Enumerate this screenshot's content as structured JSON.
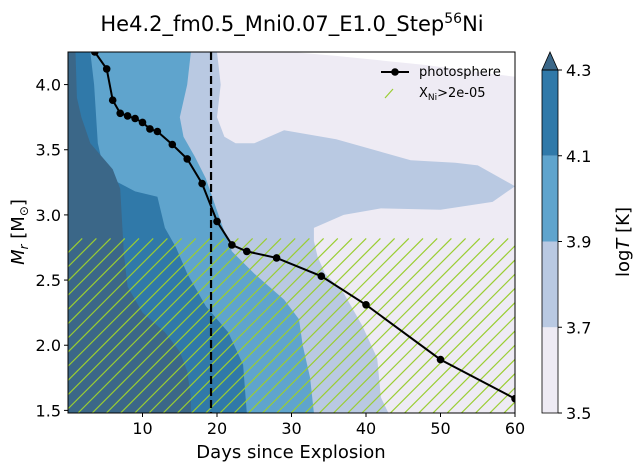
{
  "chart_data": {
    "type": "line",
    "title": "He4.2_fm0.5_Mni0.07_E1.0_Step",
    "title_superscript": "56",
    "title_suffix": "Ni",
    "xlabel": "Days since Explosion",
    "ylabel_main": "M",
    "ylabel_sub": "r",
    "ylabel_unit_open": " [M",
    "ylabel_unit_sub": "⊙",
    "ylabel_unit_close": "]",
    "xlim": [
      0,
      60
    ],
    "ylim": [
      1.48,
      4.25
    ],
    "xticks": [
      10,
      20,
      30,
      40,
      50,
      60
    ],
    "yticks": [
      1.5,
      2.0,
      2.5,
      3.0,
      3.5,
      4.0
    ],
    "vline_x": 19.2,
    "series": [
      {
        "name": "photosphere",
        "x": [
          3.6,
          5.2,
          6.0,
          7.0,
          8.0,
          9.0,
          10.0,
          11.0,
          12.0,
          14.0,
          16.0,
          18.0,
          20.0,
          22.0,
          24.0,
          28.0,
          34.0,
          40.0,
          50.0,
          60.0
        ],
        "y": [
          4.25,
          4.12,
          3.88,
          3.78,
          3.76,
          3.74,
          3.71,
          3.66,
          3.64,
          3.54,
          3.43,
          3.24,
          2.95,
          2.77,
          2.72,
          2.67,
          2.53,
          2.31,
          1.89,
          1.59
        ],
        "color": "#000000"
      }
    ],
    "hatch_legend": {
      "label_main": "X",
      "label_sub": "Ni",
      "label_tail": ">2e-05",
      "color": "#9acd32"
    },
    "hatch_region": {
      "x": [
        0,
        60
      ],
      "y": [
        1.48,
        2.82
      ]
    },
    "colorbar": {
      "label_main": "log",
      "label_var": "T",
      "label_unit": " [K]",
      "ticks": [
        "3.5",
        "3.7",
        "3.9",
        "4.1",
        "4.3"
      ],
      "levels": [
        3.5,
        3.7,
        3.9,
        4.1,
        4.3
      ],
      "colors": [
        "#eeebf4",
        "#b9c9e2",
        "#5fa4cd",
        "#3079a9",
        "#3b6788"
      ]
    },
    "contour_boundaries": [
      {
        "level": 3.5,
        "points": [
          [
            0,
            1.48
          ],
          [
            0,
            4.25
          ],
          [
            30,
            4.25
          ],
          [
            36,
            4.22
          ],
          [
            48,
            4.15
          ],
          [
            60,
            4.06
          ],
          [
            60,
            1.48
          ]
        ]
      },
      {
        "level": 3.7,
        "points": [
          [
            0,
            1.48
          ],
          [
            0,
            4.25
          ],
          [
            20,
            4.25
          ],
          [
            20.5,
            4.0
          ],
          [
            20,
            3.75
          ],
          [
            21,
            3.6
          ],
          [
            22.5,
            3.55
          ],
          [
            25,
            3.55
          ],
          [
            29,
            3.65
          ],
          [
            36,
            3.58
          ],
          [
            46,
            3.42
          ],
          [
            52,
            3.4
          ],
          [
            55,
            3.38
          ],
          [
            60,
            3.22
          ],
          [
            57,
            3.1
          ],
          [
            50,
            3.04
          ],
          [
            42,
            3.05
          ],
          [
            37,
            3.0
          ],
          [
            33,
            2.9
          ],
          [
            33,
            2.8
          ],
          [
            33.5,
            2.68
          ],
          [
            34.5,
            2.55
          ],
          [
            37,
            2.4
          ],
          [
            39.5,
            2.15
          ],
          [
            41.5,
            1.9
          ],
          [
            42,
            1.6
          ],
          [
            43,
            1.48
          ]
        ]
      },
      {
        "level": 3.9,
        "points": [
          [
            0,
            1.48
          ],
          [
            0,
            4.25
          ],
          [
            16.5,
            4.25
          ],
          [
            16,
            4.0
          ],
          [
            15,
            3.75
          ],
          [
            15.5,
            3.6
          ],
          [
            17,
            3.45
          ],
          [
            18.5,
            3.28
          ],
          [
            20.5,
            2.95
          ],
          [
            22,
            2.72
          ],
          [
            25,
            2.55
          ],
          [
            29,
            2.35
          ],
          [
            31,
            2.2
          ],
          [
            31.5,
            2.0
          ],
          [
            32.5,
            1.75
          ],
          [
            33,
            1.48
          ]
        ]
      },
      {
        "level": 4.1,
        "points": [
          [
            0,
            1.48
          ],
          [
            0,
            4.25
          ],
          [
            3,
            4.25
          ],
          [
            3.5,
            4.0
          ],
          [
            4,
            3.55
          ],
          [
            5,
            3.3
          ],
          [
            9,
            3.18
          ],
          [
            12,
            3.14
          ],
          [
            13,
            2.9
          ],
          [
            14.5,
            2.75
          ],
          [
            16,
            2.55
          ],
          [
            18.5,
            2.3
          ],
          [
            21.5,
            2.1
          ],
          [
            23.5,
            1.85
          ],
          [
            24,
            1.48
          ]
        ]
      },
      {
        "level": 4.3,
        "points": [
          [
            0,
            1.48
          ],
          [
            0,
            4.25
          ],
          [
            1,
            4.25
          ],
          [
            1.2,
            3.9
          ],
          [
            1.8,
            3.75
          ],
          [
            3,
            3.55
          ],
          [
            4.5,
            3.45
          ],
          [
            6,
            3.35
          ],
          [
            7,
            3.2
          ],
          [
            7.5,
            2.7
          ],
          [
            8,
            2.45
          ],
          [
            10,
            2.25
          ],
          [
            13,
            2.1
          ],
          [
            15,
            1.95
          ],
          [
            16,
            1.8
          ],
          [
            16.5,
            1.6
          ],
          [
            16.5,
            1.48
          ]
        ]
      }
    ]
  }
}
